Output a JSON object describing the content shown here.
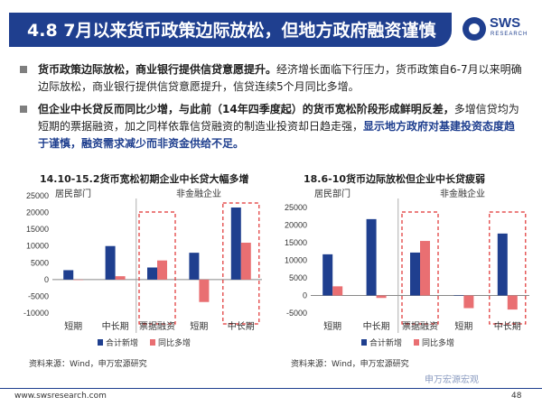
{
  "header": {
    "title": "4.8 7月以来货币政策边际放松，但地方政府融资谨慎",
    "logo_text": "SWS",
    "logo_sub": "RESEARCH"
  },
  "bullets": [
    {
      "bold": "货币政策边际放松，商业银行提供信贷意愿提升。",
      "text": "经济增长面临下行压力，货币政策自6-7月以来明确边际放松，商业银行提供信贷意愿提升，信贷连续5个月同比多增。"
    },
    {
      "bold": "但企业中长贷反而同比少增，与此前（14年四季度起）的货币宽松阶段形成鲜明反差，",
      "text": "多增信贷均为短期的票据融资，加之同样依靠信贷融资的制造业投资却日趋走强，",
      "blue": "显示地方政府对基建投资态度趋于谨慎，融资需求减少而非资金供给不足。"
    }
  ],
  "chart_data": [
    {
      "type": "bar",
      "title": "14.10-15.2货币宽松初期企业中长贷大幅多增",
      "categories": [
        "短期",
        "中长期",
        "票据融资",
        "短期",
        "中长期"
      ],
      "groups": [
        "居民部门",
        "非金融企业"
      ],
      "series": [
        {
          "name": "合计新增",
          "color": "#1f3f8f",
          "values": [
            2800,
            10000,
            3600,
            8000,
            21500
          ]
        },
        {
          "name": "同比多增",
          "color": "#e96f72",
          "values": [
            0,
            1000,
            5700,
            -6700,
            11000
          ]
        }
      ],
      "yticks": [
        "25000",
        "20000",
        "15000",
        "10000",
        "5000",
        "0",
        "-5000",
        "-10000"
      ],
      "ylim": [
        -10000,
        25000
      ],
      "source": "资料来源：Wind，申万宏源研究"
    },
    {
      "type": "bar",
      "title": "18.6-10货币边际放松但企业中长贷疲弱",
      "categories": [
        "短期",
        "中长期",
        "票据融资",
        "短期",
        "中长期"
      ],
      "groups": [
        "居民部门",
        "非金融企业"
      ],
      "series": [
        {
          "name": "合计新增",
          "color": "#1f3f8f",
          "values": [
            11700,
            21700,
            12200,
            100,
            17600
          ]
        },
        {
          "name": "同比多增",
          "color": "#e96f72",
          "values": [
            2600,
            -700,
            15500,
            -3600,
            -4000
          ]
        }
      ],
      "yticks": [
        "25000",
        "20000",
        "15000",
        "10000",
        "5000",
        "0",
        "-5000"
      ],
      "ylim": [
        -5000,
        25000
      ],
      "source": "资料来源：Wind，申万宏源研究"
    }
  ],
  "footer": {
    "url": "www.swsresearch.com",
    "watermark": "申万宏源宏观",
    "page": "48"
  }
}
